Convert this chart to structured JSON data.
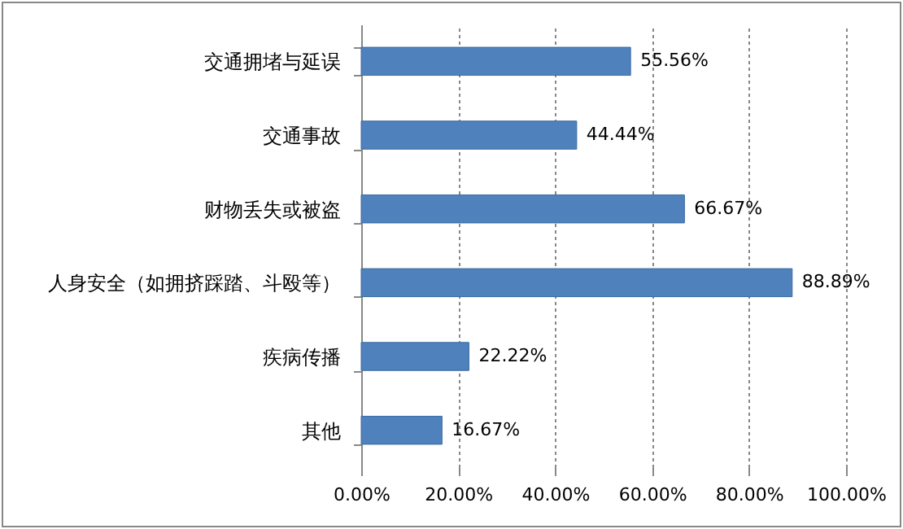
{
  "chart_data": {
    "type": "bar",
    "orientation": "horizontal",
    "categories": [
      "交通拥堵与延误",
      "交通事故",
      "财物丢失或被盗",
      "人身安全（如拥挤踩踏、斗殴等）",
      "疾病传播",
      "其他"
    ],
    "values": [
      55.56,
      44.44,
      66.67,
      88.89,
      22.22,
      16.67
    ],
    "value_labels": [
      "55.56%",
      "44.44%",
      "66.67%",
      "88.89%",
      "22.22%",
      "16.67%"
    ],
    "color": "#4f81bd",
    "xlim": [
      0,
      100
    ],
    "xticks": [
      {
        "value": 0,
        "label": "0.00%"
      },
      {
        "value": 20,
        "label": "20.00%"
      },
      {
        "value": 40,
        "label": "40.00%"
      },
      {
        "value": 60,
        "label": "60.00%"
      },
      {
        "value": 80,
        "label": "80.00%"
      },
      {
        "value": 100,
        "label": "100.00%"
      }
    ],
    "grid": "x"
  }
}
